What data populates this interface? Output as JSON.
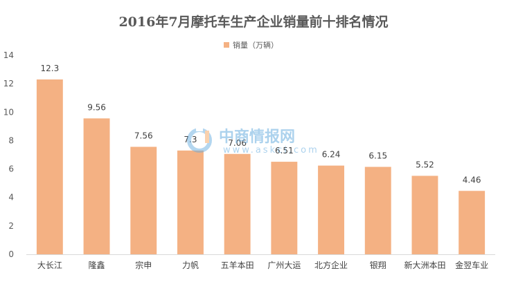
{
  "chart_data": {
    "type": "bar",
    "title": "2016年7月摩托车生产企业销量前十排名情况",
    "legend": {
      "label": "销量（万辆）",
      "position": "top-center"
    },
    "categories": [
      "大长江",
      "隆鑫",
      "宗申",
      "力帆",
      "五羊本田",
      "广州大运",
      "北方企业",
      "银翔",
      "新大洲本田",
      "金翌车业"
    ],
    "series": [
      {
        "name": "销量（万辆）",
        "values": [
          12.3,
          9.56,
          7.56,
          7.3,
          7.06,
          6.51,
          6.24,
          6.15,
          5.52,
          4.46
        ],
        "color": "#f4b183"
      }
    ],
    "data_labels": [
      "12.3",
      "9.56",
      "7.56",
      "7.3",
      "7.06",
      "6.51",
      "6.24",
      "6.15",
      "5.52",
      "4.46"
    ],
    "ylim": [
      0,
      14
    ],
    "yticks": [
      0,
      2,
      4,
      6,
      8,
      10,
      12,
      14
    ],
    "grid": false,
    "xlabel": "",
    "ylabel": ""
  },
  "watermark": {
    "text": "中商情报网",
    "url": "www.askci.com"
  }
}
